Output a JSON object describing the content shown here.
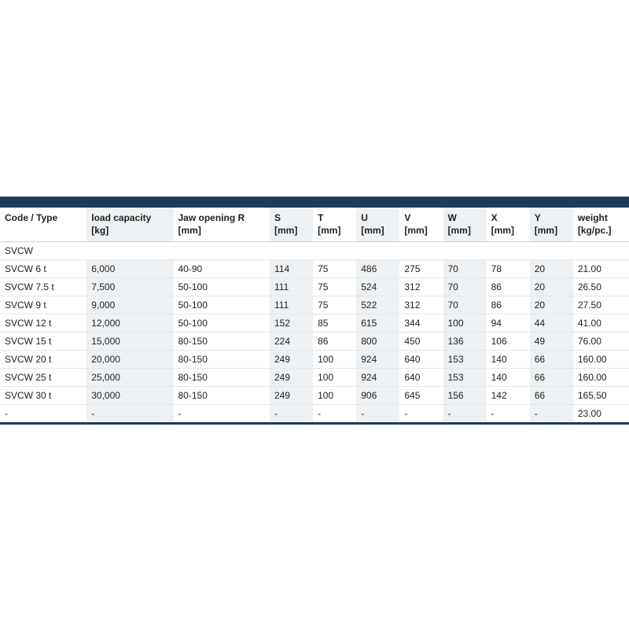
{
  "table": {
    "type": "table",
    "colors": {
      "header_bar": "#1e3a5f",
      "stripe_light": "#ffffff",
      "stripe_dark": "#eef1f3",
      "row_border": "#e6e6e6",
      "text": "#222222"
    },
    "header": [
      {
        "line1": "Code / Type",
        "line2": ""
      },
      {
        "line1": "load capacity",
        "line2": "[kg]"
      },
      {
        "line1": "Jaw opening R",
        "line2": "[mm]"
      },
      {
        "line1": "S",
        "line2": "[mm]"
      },
      {
        "line1": "T",
        "line2": "[mm]"
      },
      {
        "line1": "U",
        "line2": "[mm]"
      },
      {
        "line1": "V",
        "line2": "[mm]"
      },
      {
        "line1": "W",
        "line2": "[mm]"
      },
      {
        "line1": "X",
        "line2": "[mm]"
      },
      {
        "line1": "Y",
        "line2": "[mm]"
      },
      {
        "line1": "weight",
        "line2": "[kg/pc.]"
      }
    ],
    "section_label": "SVCW",
    "rows": [
      [
        "SVCW 6 t",
        "6,000",
        "40-90",
        "114",
        "75",
        "486",
        "275",
        "70",
        "78",
        "20",
        "21.00"
      ],
      [
        "SVCW 7.5 t",
        "7,500",
        "50-100",
        "111",
        "75",
        "524",
        "312",
        "70",
        "86",
        "20",
        "26.50"
      ],
      [
        "SVCW 9 t",
        "9,000",
        "50-100",
        "111",
        "75",
        "522",
        "312",
        "70",
        "86",
        "20",
        "27.50"
      ],
      [
        "SVCW 12 t",
        "12,000",
        "50-100",
        "152",
        "85",
        "615",
        "344",
        "100",
        "94",
        "44",
        "41.00"
      ],
      [
        "SVCW 15 t",
        "15,000",
        "80-150",
        "224",
        "86",
        "800",
        "450",
        "136",
        "106",
        "49",
        "76.00"
      ],
      [
        "SVCW 20 t",
        "20,000",
        "80-150",
        "249",
        "100",
        "924",
        "640",
        "153",
        "140",
        "66",
        "160.00"
      ],
      [
        "SVCW 25 t",
        "25,000",
        "80-150",
        "249",
        "100",
        "924",
        "640",
        "153",
        "140",
        "66",
        "160.00"
      ],
      [
        "SVCW 30 t",
        "30,000",
        "80-150",
        "249",
        "100",
        "906",
        "645",
        "156",
        "142",
        "66",
        "165.50"
      ],
      [
        "-",
        "-",
        "-",
        "-",
        "-",
        "-",
        "-",
        "-",
        "-",
        "-",
        "23.00"
      ]
    ],
    "col_classes": [
      "col-code",
      "col-load",
      "col-jaw",
      "col-dim",
      "col-dim",
      "col-dim",
      "col-dim",
      "col-dim",
      "col-dim",
      "col-dim",
      "col-wt"
    ]
  }
}
